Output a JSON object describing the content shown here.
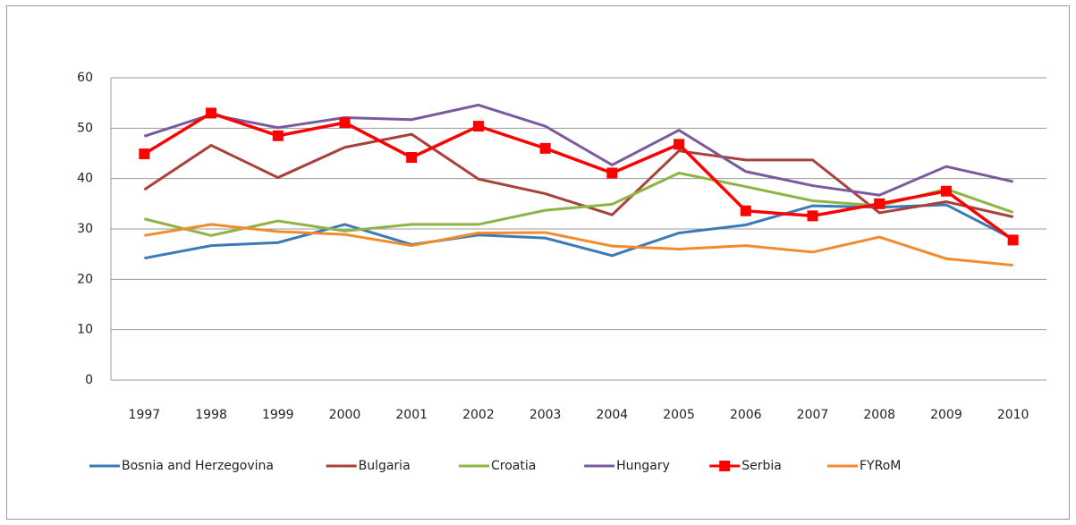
{
  "chart_data": {
    "type": "line",
    "categories": [
      "1997",
      "1998",
      "1999",
      "2000",
      "2001",
      "2002",
      "2003",
      "2004",
      "2005",
      "2006",
      "2007",
      "2008",
      "2009",
      "2010"
    ],
    "series": [
      {
        "name": "Bosnia and Herzegovina",
        "color": "#3a7ab8",
        "values": [
          24.2,
          26.7,
          27.3,
          30.9,
          26.9,
          28.8,
          28.2,
          24.7,
          29.2,
          30.8,
          34.6,
          34.3,
          34.8,
          28.0
        ]
      },
      {
        "name": "Bulgaria",
        "color": "#a9413b",
        "values": [
          37.8,
          46.6,
          40.2,
          46.2,
          48.8,
          39.9,
          37.0,
          32.8,
          45.5,
          43.7,
          43.7,
          33.2,
          35.4,
          32.4
        ]
      },
      {
        "name": "Croatia",
        "color": "#8db445",
        "values": [
          32.0,
          28.7,
          31.6,
          29.6,
          30.9,
          30.9,
          33.7,
          34.9,
          41.1,
          38.4,
          35.6,
          34.6,
          37.9,
          33.3
        ]
      },
      {
        "name": "Hungary",
        "color": "#7a5a9e",
        "values": [
          48.4,
          52.7,
          50.1,
          52.1,
          51.7,
          54.6,
          50.4,
          42.7,
          49.6,
          41.4,
          38.6,
          36.7,
          42.4,
          39.4
        ]
      },
      {
        "name": "Serbia",
        "color": "#ff0000",
        "marker": "square",
        "values": [
          44.9,
          53.0,
          48.5,
          51.1,
          44.2,
          50.4,
          46.0,
          41.1,
          46.8,
          33.6,
          32.6,
          35.0,
          37.5,
          27.8
        ]
      },
      {
        "name": "FYRoM",
        "color": "#f08c2c",
        "values": [
          28.7,
          30.9,
          29.5,
          28.9,
          26.7,
          29.2,
          29.3,
          26.6,
          26.0,
          26.7,
          25.4,
          28.4,
          24.1,
          22.8
        ]
      }
    ],
    "ylim": [
      0,
      60
    ],
    "yticks": [
      0,
      10,
      20,
      30,
      40,
      50,
      60
    ],
    "grid": true,
    "legend": "bottom"
  }
}
